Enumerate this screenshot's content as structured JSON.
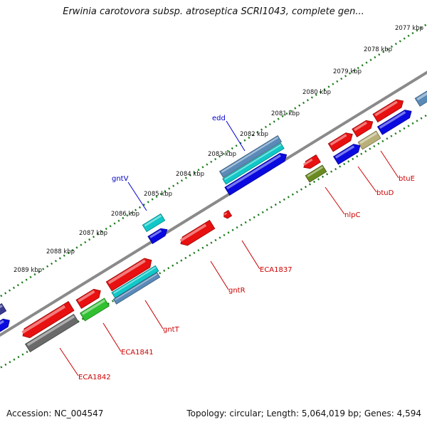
{
  "header": {
    "title": "Erwinia carotovora subsp. atroseptica SCRI1043, complete gen..."
  },
  "footer": {
    "accession": "Accession: NC_004547",
    "summary": "Topology: circular; Length: 5,064,019 bp; Genes: 4,594"
  },
  "ticks": [
    "2077 kbp",
    "2078 kbp",
    "2079 kbp",
    "2080 kbp",
    "2081 kbp",
    "2082 kbp",
    "2083 kbp",
    "2084 kbp",
    "2085 kbp",
    "2086 kbp",
    "2087 kbp",
    "2088 kbp",
    "2089 kbp"
  ],
  "genes": [
    {
      "name": "edd",
      "color": "#0000cc"
    },
    {
      "name": "gntV",
      "color": "#0000cc"
    },
    {
      "name": "ECA1837",
      "color": "#cc0000"
    },
    {
      "name": "gntR",
      "color": "#cc0000"
    },
    {
      "name": "nlpC",
      "color": "#cc0000"
    },
    {
      "name": "btuD",
      "color": "#cc0000"
    },
    {
      "name": "btuE",
      "color": "#cc0000"
    },
    {
      "name": "gntT",
      "color": "#cc0000"
    },
    {
      "name": "ECA1841",
      "color": "#cc0000"
    },
    {
      "name": "ECA1842",
      "color": "#cc0000"
    }
  ],
  "colors": {
    "tick": "#1a7a1a",
    "backbone": "#8a8a8a",
    "red": "#e81010",
    "blue": "#0a0ae0",
    "cyan": "#10c8c8",
    "steel": "#5a8ab8",
    "gray": "#6a6a6a",
    "green": "#30c030",
    "olive": "#6a8a20",
    "khaki": "#b8b078",
    "navy": "#3a3a90"
  }
}
